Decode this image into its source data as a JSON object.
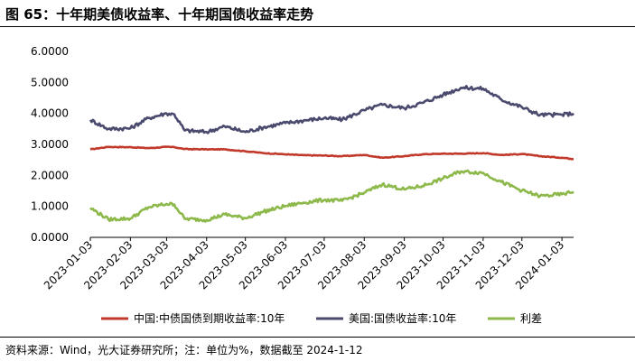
{
  "title": "图 65：十年期美债收益率、十年期国债收益率走势",
  "footnote": "资料来源：Wind，光大证券研究所；注：单位为%，数据截至 2024-1-12",
  "chart_data": {
    "type": "line",
    "x": [
      "2023-01-03",
      "2023-01-17",
      "2023-02-03",
      "2023-02-17",
      "2023-03-03",
      "2023-03-09",
      "2023-03-17",
      "2023-04-03",
      "2023-04-17",
      "2023-05-03",
      "2023-05-17",
      "2023-06-03",
      "2023-06-17",
      "2023-07-03",
      "2023-07-17",
      "2023-08-03",
      "2023-08-17",
      "2023-09-03",
      "2023-09-17",
      "2023-10-03",
      "2023-10-17",
      "2023-11-03",
      "2023-11-17",
      "2023-12-03",
      "2023-12-17",
      "2024-01-03",
      "2024-01-12"
    ],
    "xticks": [
      "2023-01-03",
      "2023-02-03",
      "2023-03-03",
      "2023-04-03",
      "2023-05-03",
      "2023-06-03",
      "2023-07-03",
      "2023-08-03",
      "2023-09-03",
      "2023-10-03",
      "2023-11-03",
      "2023-12-03",
      "2024-01-03"
    ],
    "series": [
      {
        "name": "中国:中债国债到期收益率:10年",
        "color": "#c0392b",
        "values": [
          2.84,
          2.92,
          2.91,
          2.88,
          2.92,
          2.91,
          2.85,
          2.84,
          2.84,
          2.78,
          2.72,
          2.68,
          2.65,
          2.64,
          2.62,
          2.66,
          2.57,
          2.62,
          2.68,
          2.7,
          2.7,
          2.72,
          2.66,
          2.69,
          2.62,
          2.57,
          2.53
        ]
      },
      {
        "name": "美国:国债收益率:10年",
        "color": "#4a4a6e",
        "values": [
          3.79,
          3.5,
          3.52,
          3.85,
          4.0,
          3.97,
          3.45,
          3.4,
          3.58,
          3.4,
          3.55,
          3.69,
          3.77,
          3.85,
          3.8,
          4.1,
          4.28,
          4.17,
          4.34,
          4.6,
          4.83,
          4.8,
          4.45,
          4.2,
          3.95,
          3.96,
          4.0
        ]
      },
      {
        "name": "利差",
        "color": "#8db84a",
        "values": [
          0.95,
          0.58,
          0.61,
          0.97,
          1.08,
          1.06,
          0.6,
          0.56,
          0.74,
          0.62,
          0.83,
          1.01,
          1.12,
          1.21,
          1.18,
          1.44,
          1.71,
          1.55,
          1.66,
          1.9,
          2.13,
          2.08,
          1.79,
          1.51,
          1.33,
          1.39,
          1.47
        ]
      }
    ],
    "ylim": [
      0,
      6
    ],
    "yticks": [
      "0.0000",
      "1.0000",
      "2.0000",
      "3.0000",
      "4.0000",
      "5.0000",
      "6.0000"
    ],
    "legend": "bottom",
    "grid": false
  }
}
